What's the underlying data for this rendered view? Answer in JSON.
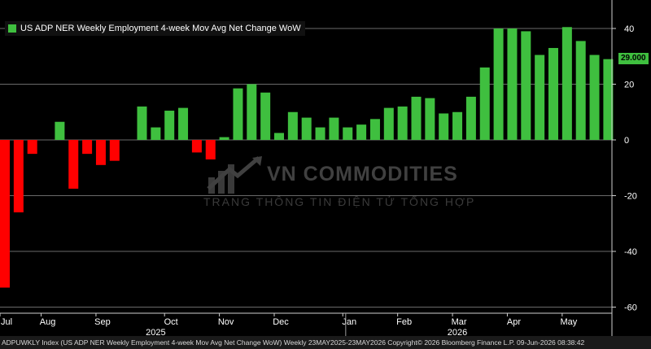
{
  "legend": {
    "label": "US ADP NER Weekly Employment 4-week Mov Avg Net Change WoW"
  },
  "last_value": "29.000",
  "footer": {
    "text": "ADPUWKLY Index (US ADP NER Weekly Employment 4-week Mov Avg Net Change WoW) Weekly 23MAY2025-23MAY2026 Copyright© 2026 Bloomberg Finance L.P. 09-Jun-2026 08:38:42"
  },
  "watermark": {
    "brand": "VN COMMODITIES",
    "tagline": "TRANG THÔNG TIN ĐIỆN TỬ TỔNG HỢP"
  },
  "colors": {
    "positive": "#3fbf3f",
    "negative": "#ff0000",
    "background": "#000000",
    "grid": "#6a6a6a"
  },
  "chart_data": {
    "type": "bar",
    "series": [
      {
        "name": "US ADP NER Weekly Employment 4-week Mov Avg Net Change WoW",
        "values": [
          -53,
          -26,
          -5,
          0,
          6.5,
          -17.5,
          -5,
          -9,
          -7.5,
          0,
          12,
          4.5,
          10.5,
          11.5,
          -4.5,
          -7,
          1,
          18.5,
          20,
          17,
          2.5,
          10,
          8,
          4.5,
          8,
          4.5,
          5.5,
          7.5,
          11.5,
          12,
          15.5,
          15,
          9.5,
          10,
          15.5,
          26,
          40,
          40,
          39,
          30.5,
          33,
          40.5,
          35.5,
          30.5,
          29
        ]
      }
    ],
    "ylim": [
      -62,
      48
    ],
    "yticks": [
      40,
      20,
      0,
      -20,
      -40,
      -60
    ],
    "x_month_labels": [
      {
        "label": "Jul",
        "week": 0
      },
      {
        "label": "Aug",
        "week": 3
      },
      {
        "label": "Sep",
        "week": 7
      },
      {
        "label": "Oct",
        "week": 12
      },
      {
        "label": "Nov",
        "week": 16
      },
      {
        "label": "Dec",
        "week": 20
      },
      {
        "label": "Jan",
        "week": 25
      },
      {
        "label": "Feb",
        "week": 29
      },
      {
        "label": "Mar",
        "week": 33
      },
      {
        "label": "Apr",
        "week": 37
      },
      {
        "label": "May",
        "week": 41
      }
    ],
    "year_labels": [
      {
        "label": "2025",
        "week": 11
      },
      {
        "label": "2026",
        "week": 33
      }
    ],
    "grid": true,
    "legend_position": "top-left"
  }
}
